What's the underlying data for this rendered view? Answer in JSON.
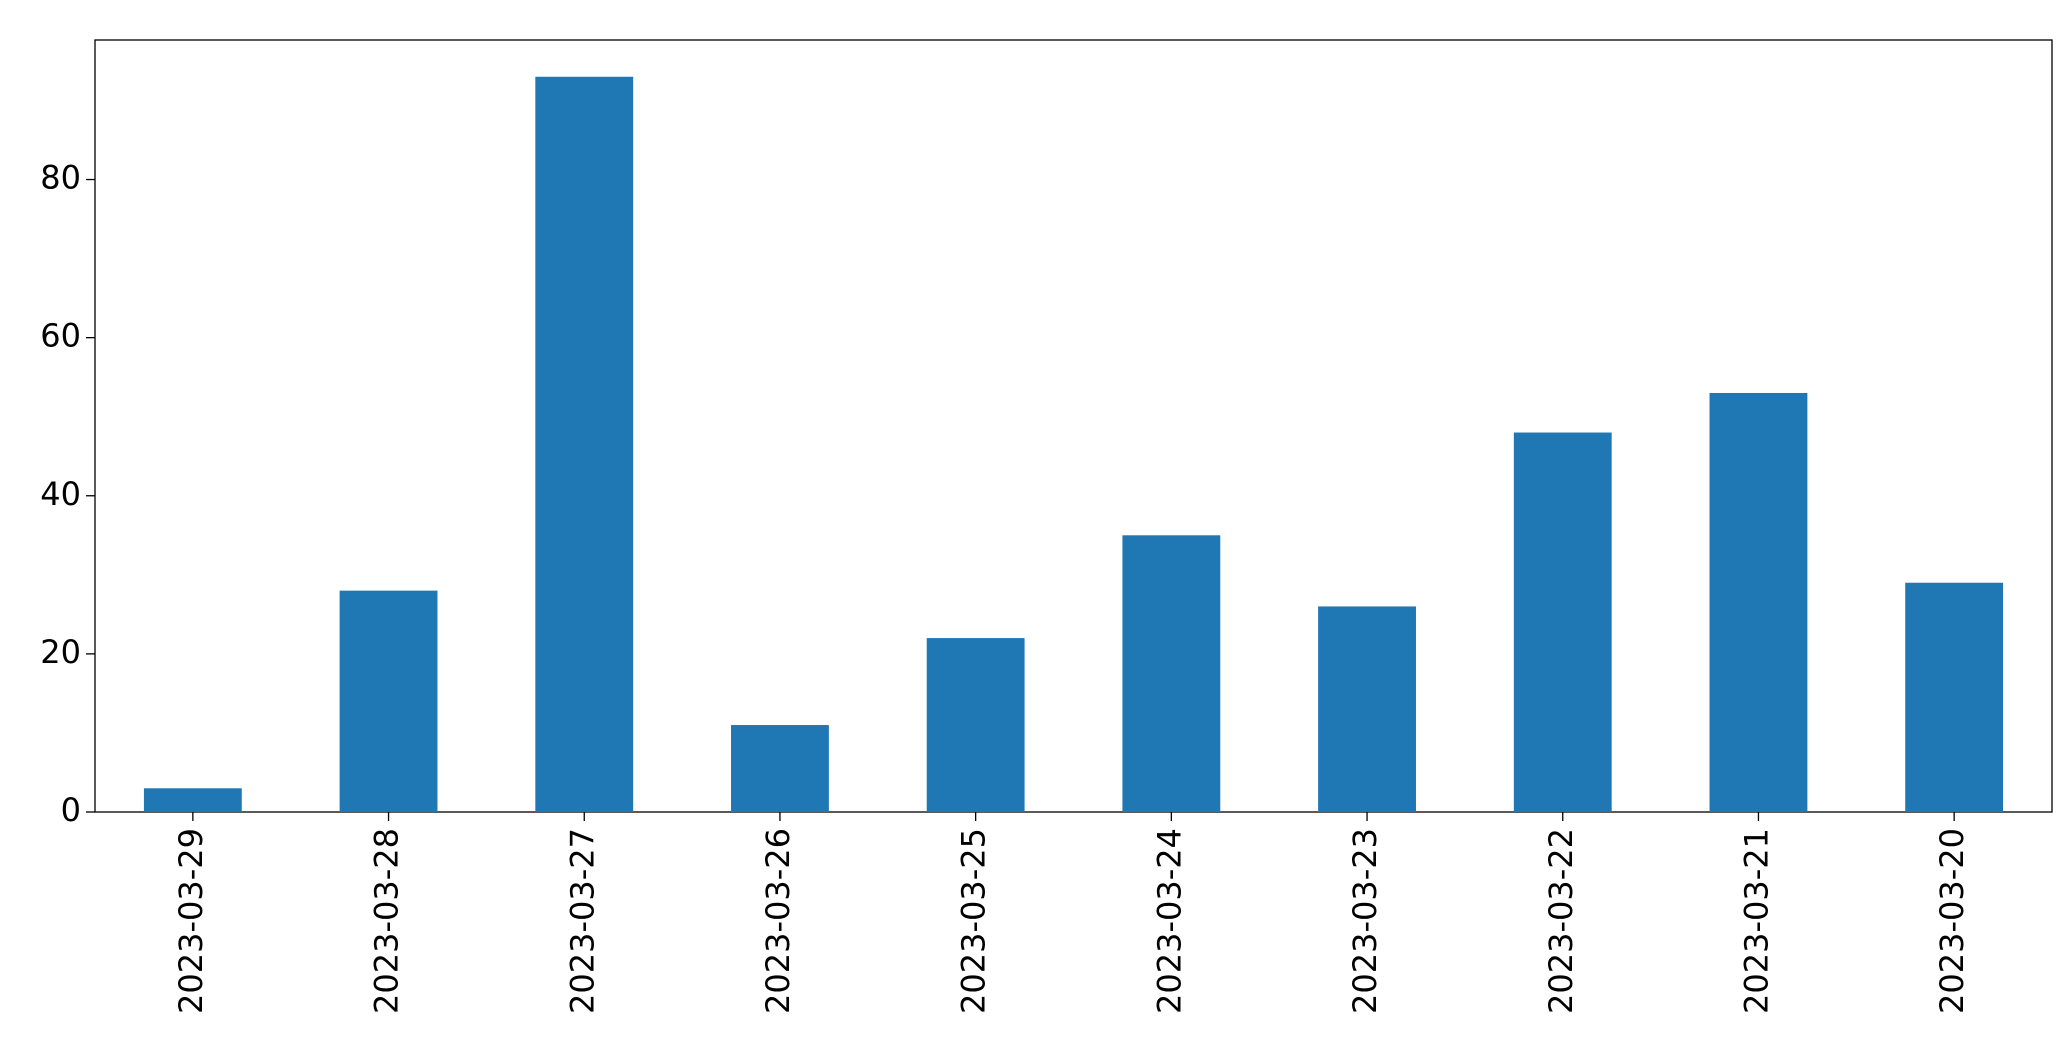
{
  "chart_data": {
    "type": "bar",
    "categories": [
      "2023-03-29",
      "2023-03-28",
      "2023-03-27",
      "2023-03-26",
      "2023-03-25",
      "2023-03-24",
      "2023-03-23",
      "2023-03-22",
      "2023-03-21",
      "2023-03-20"
    ],
    "values": [
      3,
      28,
      93,
      11,
      22,
      35,
      26,
      48,
      53,
      29
    ],
    "color": "#1f77b4",
    "ylim": [
      0,
      97.65
    ],
    "yticks": [
      0,
      20,
      40,
      60,
      80
    ],
    "grid": false
  }
}
